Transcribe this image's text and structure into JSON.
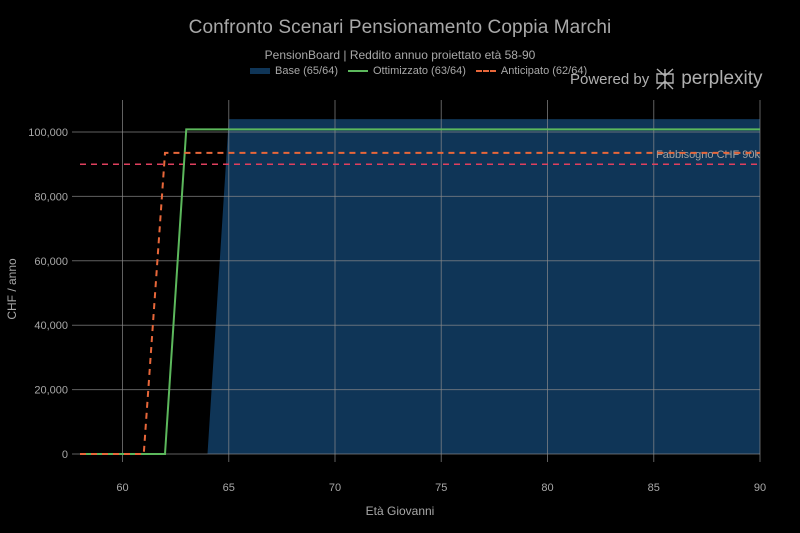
{
  "chart_data": {
    "type": "line",
    "title": "Confronto Scenari Pensionamento Coppia Marchi",
    "subtitle": "PensionBoard | Reddito annuo proiettato età 58-90",
    "xlabel": "Età Giovanni",
    "ylabel": "CHF / anno",
    "xlim": [
      58,
      90
    ],
    "ylim": [
      0,
      104000
    ],
    "x_ticks": [
      60,
      65,
      70,
      75,
      80,
      85,
      90
    ],
    "x_tick_labels": [
      "60",
      "65",
      "70",
      "75",
      "80",
      "85",
      "90"
    ],
    "y_ticks": [
      0,
      20000,
      40000,
      60000,
      80000,
      100000
    ],
    "y_tick_labels": [
      "0",
      "20,000",
      "40,000",
      "60,000",
      "80,000",
      "100,000"
    ],
    "grid": true,
    "legend_position": "top-center",
    "series": [
      {
        "name": "Base (65/64)",
        "style": "area",
        "color": "#0f3557",
        "x": [
          58,
          64,
          65,
          90
        ],
        "values": [
          0,
          0,
          104000,
          104000
        ]
      },
      {
        "name": "Ottimizzato (63/64)",
        "style": "line",
        "color": "#5cb85c",
        "x": [
          58,
          62,
          63,
          90
        ],
        "values": [
          0,
          0,
          100800,
          100800
        ]
      },
      {
        "name": "Anticipato (62/64)",
        "style": "dash",
        "color": "#e8673a",
        "x": [
          58,
          61,
          62,
          90
        ],
        "values": [
          0,
          0,
          93500,
          93500
        ]
      }
    ],
    "reference_lines": [
      {
        "y": 90000,
        "label": "Fabbisogno CHF 90k",
        "color": "#e0405e",
        "style": "dash"
      }
    ]
  },
  "branding": {
    "powered_by": "Powered by",
    "brand": "perplexity"
  }
}
